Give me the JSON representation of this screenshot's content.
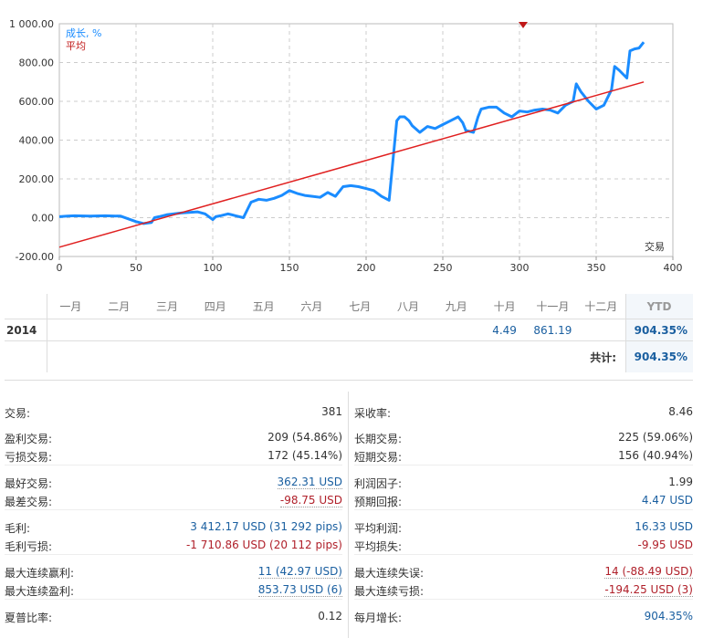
{
  "chart": {
    "legend_growth": "成长, %",
    "legend_avg": "平均",
    "x_corner_label": "交易",
    "y_ticks": [
      "1 000.00",
      "800.00",
      "600.00",
      "400.00",
      "200.00",
      "0.00",
      "-200.00"
    ],
    "x_ticks": [
      "0",
      "50",
      "100",
      "150",
      "200",
      "250",
      "300",
      "350",
      "400"
    ],
    "growth_color": "#1a8cff",
    "avg_color": "#e02020"
  },
  "chart_data": {
    "type": "line",
    "xlabel": "交易",
    "ylabel": "成长, %",
    "xlim": [
      0,
      400
    ],
    "ylim": [
      -200,
      1000
    ],
    "grid": true,
    "series": [
      {
        "name": "成长, %",
        "x": [
          0,
          5,
          10,
          20,
          30,
          40,
          50,
          55,
          60,
          62,
          65,
          70,
          75,
          80,
          90,
          95,
          100,
          102,
          105,
          110,
          115,
          120,
          125,
          130,
          135,
          140,
          145,
          150,
          155,
          160,
          165,
          170,
          175,
          180,
          185,
          190,
          195,
          200,
          205,
          210,
          215,
          220,
          222,
          225,
          228,
          230,
          235,
          240,
          245,
          250,
          255,
          260,
          263,
          265,
          270,
          273,
          275,
          280,
          285,
          290,
          295,
          300,
          305,
          310,
          315,
          320,
          325,
          330,
          335,
          337,
          340,
          345,
          350,
          355,
          360,
          362,
          365,
          370,
          372,
          375,
          378,
          381
        ],
        "y": [
          5,
          8,
          10,
          8,
          10,
          8,
          -20,
          -30,
          -25,
          0,
          5,
          15,
          20,
          25,
          30,
          20,
          -10,
          5,
          10,
          20,
          10,
          0,
          80,
          95,
          90,
          100,
          115,
          140,
          125,
          115,
          110,
          105,
          130,
          110,
          160,
          165,
          160,
          150,
          140,
          110,
          90,
          500,
          520,
          520,
          500,
          475,
          440,
          470,
          460,
          480,
          500,
          520,
          490,
          450,
          440,
          520,
          560,
          570,
          570,
          540,
          520,
          550,
          545,
          555,
          560,
          555,
          540,
          580,
          600,
          690,
          650,
          600,
          560,
          580,
          660,
          780,
          760,
          720,
          860,
          870,
          875,
          905
        ]
      },
      {
        "name": "平均",
        "x": [
          0,
          381
        ],
        "y": [
          -152,
          700
        ]
      }
    ]
  },
  "months": {
    "headers": [
      "一月",
      "二月",
      "三月",
      "四月",
      "五月",
      "六月",
      "七月",
      "八月",
      "九月",
      "十月",
      "十一月",
      "十二月"
    ],
    "ytd_header": "YTD",
    "year": "2014",
    "values": [
      "",
      "",
      "",
      "",
      "",
      "",
      "",
      "",
      "",
      "4.49",
      "861.19",
      ""
    ],
    "ytd_value": "904.35%",
    "total_label": "共计:",
    "total_value": "904.35%"
  },
  "stats": {
    "left": [
      {
        "label": "交易:",
        "value": "381"
      },
      {
        "label": "盈利交易:",
        "value": "209 (54.86%)"
      },
      {
        "label": "亏损交易:",
        "value": "172 (45.14%)"
      },
      {
        "label": "最好交易:",
        "value": "362.31 USD"
      },
      {
        "label": "最差交易:",
        "value": "-98.75 USD"
      },
      {
        "label": "毛利:",
        "value": "3 412.17 USD (31 292 pips)"
      },
      {
        "label": "毛利亏损:",
        "value": "-1 710.86 USD (20 112 pips)"
      },
      {
        "label": "最大连续赢利:",
        "value": "11 (42.97 USD)"
      },
      {
        "label": "最大连续盈利:",
        "value": "853.73 USD (6)"
      },
      {
        "label": "夏普比率:",
        "value": "0.12"
      }
    ],
    "right": [
      {
        "label": "采收率:",
        "value": "8.46"
      },
      {
        "label": "长期交易:",
        "value": "225 (59.06%)"
      },
      {
        "label": "短期交易:",
        "value": "156 (40.94%)"
      },
      {
        "label": "利润因子:",
        "value": "1.99"
      },
      {
        "label": "预期回报:",
        "value": "4.47 USD"
      },
      {
        "label": "平均利润:",
        "value": "16.33 USD"
      },
      {
        "label": "平均损失:",
        "value": "-9.95 USD"
      },
      {
        "label": "最大连续失误:",
        "value": "14 (-88.49 USD)"
      },
      {
        "label": "最大连续亏损:",
        "value": "-194.25 USD (3)"
      },
      {
        "label": "每月增长:",
        "value": "904.35%"
      }
    ]
  }
}
